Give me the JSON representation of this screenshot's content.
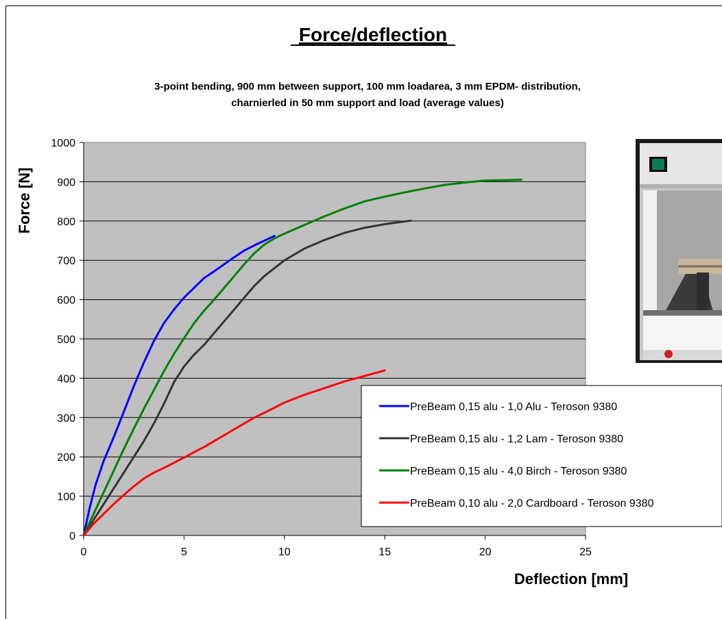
{
  "chart_data": {
    "type": "line",
    "title": "Force/deflection",
    "subtitle_lines": [
      "3-point bending, 900 mm between support, 100 mm loadarea, 3 mm EPDM- distribution,",
      "charnierled in 50 mm support and load (average values)"
    ],
    "xlabel": "Deflection [mm]",
    "ylabel": "Force [N]",
    "xlim": [
      0,
      25
    ],
    "ylim": [
      0,
      1000
    ],
    "x_ticks": [
      0,
      5,
      10,
      15,
      20,
      25
    ],
    "y_ticks": [
      0,
      100,
      200,
      300,
      400,
      500,
      600,
      700,
      800,
      900,
      1000
    ],
    "grid": "horizontal",
    "legend_position": "bottom-right",
    "plot_background": "#c0c0c0",
    "series": [
      {
        "name": "PreBeam 0,15 alu - 1,0 Alu - Teroson 9380",
        "color": "#0000ff",
        "points": [
          [
            0,
            0
          ],
          [
            0.3,
            70
          ],
          [
            0.6,
            130
          ],
          [
            1.0,
            190
          ],
          [
            1.5,
            250
          ],
          [
            2.0,
            315
          ],
          [
            2.5,
            380
          ],
          [
            3.0,
            440
          ],
          [
            3.5,
            495
          ],
          [
            4.0,
            540
          ],
          [
            4.5,
            575
          ],
          [
            5.0,
            605
          ],
          [
            5.5,
            630
          ],
          [
            6.0,
            655
          ],
          [
            6.5,
            672
          ],
          [
            7.0,
            690
          ],
          [
            7.5,
            708
          ],
          [
            8.0,
            725
          ],
          [
            8.5,
            738
          ],
          [
            9.0,
            750
          ],
          [
            9.5,
            762
          ]
        ]
      },
      {
        "name": "PreBeam 0,15 alu - 1,2 Lam - Teroson 9380",
        "color": "#333333",
        "points": [
          [
            0,
            0
          ],
          [
            0.5,
            40
          ],
          [
            1.0,
            80
          ],
          [
            1.5,
            120
          ],
          [
            2.0,
            160
          ],
          [
            2.5,
            200
          ],
          [
            3.0,
            240
          ],
          [
            3.5,
            285
          ],
          [
            4.0,
            335
          ],
          [
            4.5,
            390
          ],
          [
            5.0,
            430
          ],
          [
            5.5,
            460
          ],
          [
            6.0,
            485
          ],
          [
            6.5,
            515
          ],
          [
            7.0,
            545
          ],
          [
            7.5,
            575
          ],
          [
            8.0,
            605
          ],
          [
            8.5,
            635
          ],
          [
            9.0,
            660
          ],
          [
            9.5,
            680
          ],
          [
            10.0,
            700
          ],
          [
            11.0,
            730
          ],
          [
            12.0,
            752
          ],
          [
            13.0,
            770
          ],
          [
            14.0,
            783
          ],
          [
            15.0,
            792
          ],
          [
            16.0,
            799
          ],
          [
            16.3,
            801
          ]
        ]
      },
      {
        "name": "PreBeam 0,15 alu - 4,0 Birch - Teroson 9380",
        "color": "#008000",
        "points": [
          [
            0,
            0
          ],
          [
            0.5,
            55
          ],
          [
            1.0,
            110
          ],
          [
            1.5,
            165
          ],
          [
            2.0,
            220
          ],
          [
            2.5,
            272
          ],
          [
            3.0,
            322
          ],
          [
            3.5,
            370
          ],
          [
            4.0,
            418
          ],
          [
            4.5,
            462
          ],
          [
            5.0,
            502
          ],
          [
            5.5,
            540
          ],
          [
            6.0,
            572
          ],
          [
            6.5,
            600
          ],
          [
            7.0,
            630
          ],
          [
            7.5,
            660
          ],
          [
            8.0,
            690
          ],
          [
            8.5,
            718
          ],
          [
            9.0,
            740
          ],
          [
            9.5,
            756
          ],
          [
            10.0,
            768
          ],
          [
            11.0,
            790
          ],
          [
            12.0,
            812
          ],
          [
            13.0,
            832
          ],
          [
            14.0,
            850
          ],
          [
            15.0,
            862
          ],
          [
            16.0,
            873
          ],
          [
            17.0,
            883
          ],
          [
            18.0,
            892
          ],
          [
            19.0,
            898
          ],
          [
            20.0,
            903
          ],
          [
            21.0,
            904
          ],
          [
            21.8,
            905
          ]
        ]
      },
      {
        "name": "PreBeam 0,10 alu - 2,0 Cardboard - Teroson 9380",
        "color": "#ff0000",
        "points": [
          [
            0,
            0
          ],
          [
            0.5,
            30
          ],
          [
            1.0,
            55
          ],
          [
            1.5,
            80
          ],
          [
            2.0,
            103
          ],
          [
            2.5,
            125
          ],
          [
            3.0,
            145
          ],
          [
            3.5,
            160
          ],
          [
            4.0,
            172
          ],
          [
            4.5,
            185
          ],
          [
            5.0,
            198
          ],
          [
            5.5,
            212
          ],
          [
            6.0,
            225
          ],
          [
            6.5,
            240
          ],
          [
            7.0,
            255
          ],
          [
            7.5,
            270
          ],
          [
            8.0,
            285
          ],
          [
            8.5,
            300
          ],
          [
            9.0,
            312
          ],
          [
            9.5,
            325
          ],
          [
            10.0,
            338
          ],
          [
            11.0,
            358
          ],
          [
            12.0,
            375
          ],
          [
            13.0,
            392
          ],
          [
            14.0,
            406
          ],
          [
            14.5,
            413
          ],
          [
            15.0,
            420
          ]
        ]
      }
    ]
  }
}
